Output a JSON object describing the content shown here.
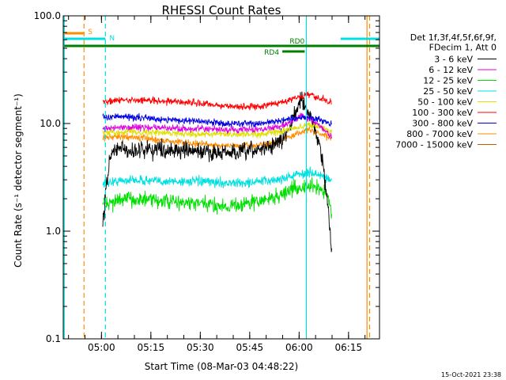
{
  "chart_data": {
    "type": "line",
    "title": "RHESSI Count Rates",
    "xlabel": "Start Time (08-Mar-03 04:48:22)",
    "ylabel": "Count Rate (s⁻¹ detector segment⁻¹)",
    "y_scale": "log",
    "ylim": [
      0.1,
      100.0
    ],
    "y_ticks": [
      "0.1",
      "1.0",
      "10.0",
      "100.0"
    ],
    "x_unit": "minutes since 04:48:22",
    "xlim": [
      0,
      96
    ],
    "x_ticks": [
      {
        "label": "05:00",
        "x": 11.6
      },
      {
        "label": "05:15",
        "x": 26.6
      },
      {
        "label": "05:30",
        "x": 41.6
      },
      {
        "label": "05:45",
        "x": 56.6
      },
      {
        "label": "06:00",
        "x": 71.6
      },
      {
        "label": "06:15",
        "x": 86.6
      }
    ],
    "legend_header": [
      "Det 1f,3f,4f,5f,6f,9f,",
      "FDecim 1, Att 0"
    ],
    "series": [
      {
        "name": "3 - 6 keV",
        "color": "#000000",
        "x": [
          12,
          14,
          16,
          20,
          25,
          30,
          35,
          40,
          45,
          50,
          55,
          60,
          65,
          68,
          70,
          72,
          74,
          76,
          78,
          80,
          81.5
        ],
        "y": [
          1.2,
          4.5,
          6.0,
          5.5,
          5.8,
          5.8,
          5.6,
          5.5,
          5.4,
          5.3,
          5.4,
          5.8,
          6.5,
          8.0,
          12.0,
          17.0,
          13.0,
          10.0,
          6.0,
          2.2,
          0.7
        ]
      },
      {
        "name": "6 - 12 keV",
        "color": "#e000e0",
        "x": [
          12,
          20,
          30,
          40,
          50,
          60,
          65,
          70,
          72,
          75,
          78,
          81.5
        ],
        "y": [
          9.0,
          9.3,
          9.1,
          8.9,
          8.7,
          8.8,
          9.3,
          10.5,
          12.0,
          11.0,
          9.5,
          7.5
        ]
      },
      {
        "name": "12 - 25 keV",
        "color": "#00e000",
        "x": [
          12,
          20,
          30,
          40,
          50,
          55,
          60,
          65,
          70,
          75,
          78,
          80,
          81.5
        ],
        "y": [
          1.8,
          2.0,
          1.9,
          1.8,
          1.7,
          1.8,
          1.9,
          2.1,
          2.5,
          2.6,
          2.5,
          2.2,
          1.5
        ]
      },
      {
        "name": "25 - 50 keV",
        "color": "#00e0e0",
        "x": [
          12,
          20,
          30,
          40,
          50,
          55,
          60,
          65,
          70,
          75,
          78,
          81.5
        ],
        "y": [
          2.8,
          3.0,
          2.9,
          2.9,
          2.8,
          2.8,
          2.9,
          3.0,
          3.3,
          3.5,
          3.3,
          3.0
        ]
      },
      {
        "name": "50 - 100 keV",
        "color": "#e0e000",
        "x": [
          12,
          20,
          30,
          40,
          50,
          60,
          65,
          70,
          75,
          78,
          81.5
        ],
        "y": [
          8.2,
          8.4,
          8.2,
          8.0,
          7.9,
          8.0,
          8.3,
          9.0,
          9.8,
          9.3,
          8.3
        ]
      },
      {
        "name": "100 - 300 keV",
        "color": "#ff0000",
        "x": [
          12,
          20,
          30,
          40,
          50,
          55,
          60,
          65,
          70,
          74,
          78,
          81.5
        ],
        "y": [
          16.0,
          16.5,
          16.3,
          15.5,
          14.5,
          14.2,
          14.5,
          15.5,
          17.0,
          18.5,
          17.0,
          15.5
        ]
      },
      {
        "name": "300 - 800 keV",
        "color": "#0000e0",
        "x": [
          12,
          20,
          30,
          40,
          50,
          60,
          65,
          70,
          75,
          78,
          81.5
        ],
        "y": [
          11.5,
          11.5,
          11.0,
          10.5,
          10.0,
          10.0,
          10.5,
          11.0,
          11.5,
          10.8,
          10.0
        ]
      },
      {
        "name": "800 - 7000 keV",
        "color": "#ff8c00",
        "x": [
          12,
          20,
          30,
          40,
          50,
          60,
          65,
          70,
          74,
          78,
          81.5
        ],
        "y": [
          7.5,
          7.5,
          7.0,
          6.5,
          6.2,
          6.3,
          6.8,
          7.8,
          8.8,
          8.0,
          7.2
        ]
      },
      {
        "name": "7000 - 15000 keV",
        "color": "#b06000",
        "x": [],
        "y": []
      }
    ],
    "state_bars": [
      {
        "label": "S",
        "color": "#ff8c00",
        "x1": 0.3,
        "x2": 6.3,
        "level": 1
      },
      {
        "label": "N",
        "color": "#00e0e0",
        "x1": 0.3,
        "x2": 12.8,
        "level": 2
      },
      {
        "label": "",
        "color": "#00e0e0",
        "x1": 84.2,
        "x2": 96,
        "level": 2
      },
      {
        "label": "RD0",
        "color": "#008000",
        "x1": 0.3,
        "x2": 96,
        "level": 3
      },
      {
        "label": "RD4",
        "color": "#008000",
        "x1": 66.5,
        "x2": 73.3,
        "level": 4
      }
    ],
    "vlines": [
      {
        "x": 0.3,
        "color": "#00e0e0",
        "style": "solid"
      },
      {
        "x": 6.3,
        "color": "#ff8c00",
        "style": "dashed"
      },
      {
        "x": 12.8,
        "color": "#00e0e0",
        "style": "dashed"
      },
      {
        "x": 73.8,
        "color": "#00e0e0",
        "style": "solid"
      },
      {
        "x": 92.2,
        "color": "#ff8c00",
        "style": "solid"
      },
      {
        "x": 93.0,
        "color": "#ff8c00",
        "style": "dashed"
      }
    ]
  },
  "footer": {
    "timestamp": "15-Oct-2021 23:38"
  }
}
